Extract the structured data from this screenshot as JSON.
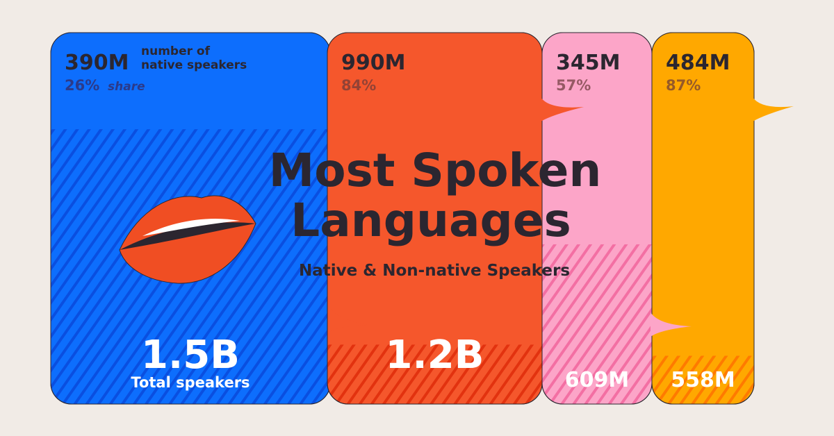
{
  "chart_data": {
    "type": "bar",
    "title": "Most Spoken Languages",
    "subtitle": "Native & Non-native Speakers",
    "native_label": "number of native speakers",
    "share_label": "share",
    "total_label": "Total speakers",
    "series": [
      {
        "native": "390M",
        "share": "26%",
        "share_value": 26,
        "total": "1.5B",
        "color": "#0d6efd",
        "hatch": "#0a4fe0"
      },
      {
        "native": "990M",
        "share": "84%",
        "share_value": 84,
        "total": "1.2B",
        "color": "#f5572c",
        "hatch": "#e2320f"
      },
      {
        "native": "345M",
        "share": "57%",
        "share_value": 57,
        "total": "609M",
        "color": "#fca5c8",
        "hatch": "#f36fa3"
      },
      {
        "native": "484M",
        "share": "87%",
        "share_value": 87,
        "total": "558M",
        "color": "#ffa800",
        "hatch": "#ff7a00"
      }
    ]
  },
  "colors": {
    "background": "#f1ebe6",
    "text": "#2b2630",
    "lips": "#f04e23"
  }
}
